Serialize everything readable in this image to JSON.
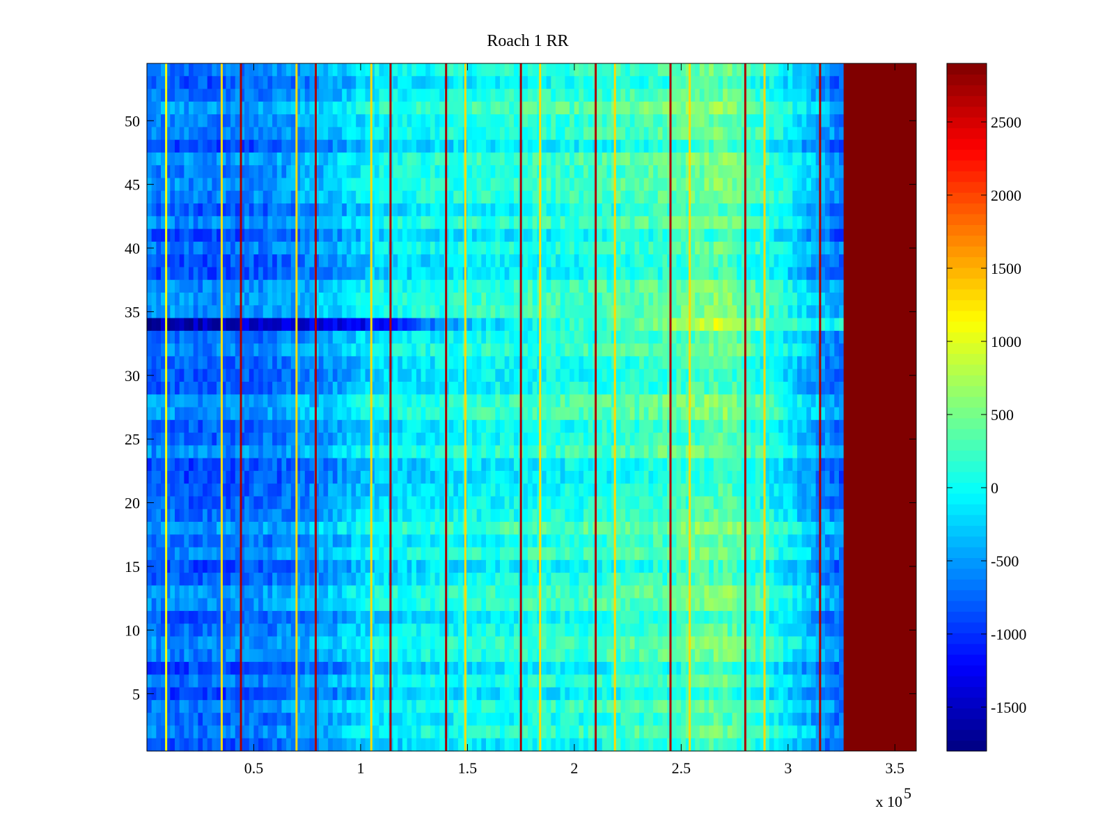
{
  "chart_data": {
    "type": "heatmap",
    "title": "Roach 1 RR",
    "xlabel": "",
    "ylabel": "",
    "x_exponent_label": "x 10",
    "x_exponent_power": "5",
    "xlim": [
      0,
      360000
    ],
    "ylim": [
      0.5,
      54.5
    ],
    "x_ticks": [
      {
        "value": 50000,
        "label": "0.5"
      },
      {
        "value": 100000,
        "label": "1"
      },
      {
        "value": 150000,
        "label": "1.5"
      },
      {
        "value": 200000,
        "label": "2"
      },
      {
        "value": 250000,
        "label": "2.5"
      },
      {
        "value": 300000,
        "label": "3"
      },
      {
        "value": 350000,
        "label": "3.5"
      }
    ],
    "y_ticks": [
      {
        "value": 5,
        "label": "5"
      },
      {
        "value": 10,
        "label": "10"
      },
      {
        "value": 15,
        "label": "15"
      },
      {
        "value": 20,
        "label": "20"
      },
      {
        "value": 25,
        "label": "25"
      },
      {
        "value": 30,
        "label": "30"
      },
      {
        "value": 35,
        "label": "35"
      },
      {
        "value": 40,
        "label": "40"
      },
      {
        "value": 45,
        "label": "45"
      },
      {
        "value": 50,
        "label": "50"
      }
    ],
    "colorbar": {
      "colormap": "jet",
      "clim": [
        -1800,
        2900
      ],
      "ticks": [
        {
          "value": -1500,
          "label": "-1500"
        },
        {
          "value": -1000,
          "label": "-1000"
        },
        {
          "value": -500,
          "label": "-500"
        },
        {
          "value": 0,
          "label": "0"
        },
        {
          "value": 500,
          "label": "500"
        },
        {
          "value": 1000,
          "label": "1000"
        },
        {
          "value": 1500,
          "label": "1500"
        },
        {
          "value": 2000,
          "label": "2000"
        },
        {
          "value": 2500,
          "label": "2500"
        }
      ]
    },
    "rows": 54,
    "data_end_x": 326000,
    "saturated_region": {
      "x_start": 326000,
      "x_end": 360000,
      "value": 2900
    },
    "background_trend": [
      {
        "x": 0,
        "value": -700
      },
      {
        "x": 30000,
        "value": -750
      },
      {
        "x": 60000,
        "value": -650
      },
      {
        "x": 90000,
        "value": -400
      },
      {
        "x": 105000,
        "value": -150
      },
      {
        "x": 150000,
        "value": 0
      },
      {
        "x": 200000,
        "value": 100
      },
      {
        "x": 230000,
        "value": 200
      },
      {
        "x": 270000,
        "value": 400
      },
      {
        "x": 295000,
        "value": 0
      },
      {
        "x": 315000,
        "value": -500
      },
      {
        "x": 325000,
        "value": -700
      }
    ],
    "low_row_band": {
      "y_from": 33.5,
      "y_to": 34.5,
      "values": [
        {
          "x": 0,
          "value": -1600
        },
        {
          "x": 100000,
          "value": -1300
        },
        {
          "x": 160000,
          "value": -200
        },
        {
          "x": 230000,
          "value": 400
        },
        {
          "x": 270000,
          "value": 1000
        },
        {
          "x": 300000,
          "value": 200
        },
        {
          "x": 326000,
          "value": 0
        }
      ]
    },
    "vertical_lines": [
      {
        "x": 9000,
        "value": 1100
      },
      {
        "x": 35000,
        "value": 1300
      },
      {
        "x": 44000,
        "value": 2700
      },
      {
        "x": 70000,
        "value": 1300
      },
      {
        "x": 79000,
        "value": 2700
      },
      {
        "x": 105000,
        "value": 1300
      },
      {
        "x": 114000,
        "value": 2700
      },
      {
        "x": 140000,
        "value": 2700
      },
      {
        "x": 149000,
        "value": 1300
      },
      {
        "x": 175000,
        "value": 2700
      },
      {
        "x": 184000,
        "value": 1300
      },
      {
        "x": 210000,
        "value": 2700
      },
      {
        "x": 219000,
        "value": 1300
      },
      {
        "x": 245000,
        "value": 2700
      },
      {
        "x": 254000,
        "value": 1300
      },
      {
        "x": 280000,
        "value": 2700
      },
      {
        "x": 289000,
        "value": 1300
      },
      {
        "x": 315000,
        "value": 2700
      }
    ]
  }
}
